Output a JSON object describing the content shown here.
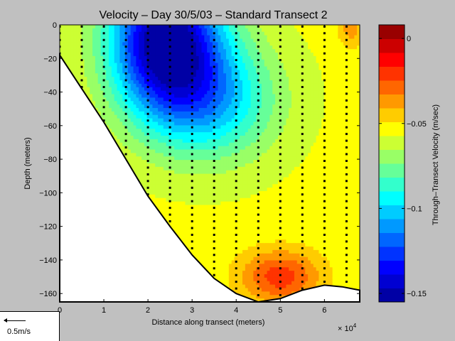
{
  "chart_data": {
    "type": "heatmap",
    "title": "Velocity – Day 30/5/03 – Standard Transect 2",
    "xlabel": "Distance along transect (meters)",
    "x_multiplier": "× 10",
    "x_multiplier_exp": "4",
    "ylabel": "Depth (meters)",
    "colorbar_label": "Through–Transect Velocity (m/sec)",
    "xlim": [
      0,
      6.8
    ],
    "ylim": [
      -165,
      0
    ],
    "x_ticks": [
      0,
      1,
      2,
      3,
      4,
      5,
      6
    ],
    "y_ticks": [
      0,
      -20,
      -40,
      -60,
      -80,
      -100,
      -120,
      -140,
      -160
    ],
    "x_tick_labels": [
      "0",
      "1",
      "2",
      "3",
      "4",
      "5",
      "6"
    ],
    "y_tick_labels": [
      "0",
      "−20",
      "−40",
      "−60",
      "−80",
      "−100",
      "−120",
      "−140",
      "−160"
    ],
    "clim": [
      -0.155,
      0.008
    ],
    "colorbar_ticks": [
      0,
      -0.05,
      -0.1,
      -0.15
    ],
    "colorbar_tick_labels": [
      "0",
      "−0.05",
      "−0.1",
      "−0.15"
    ],
    "bottom_profile": [
      [
        0,
        -18
      ],
      [
        0.5,
        -38
      ],
      [
        1,
        -58
      ],
      [
        1.5,
        -80
      ],
      [
        2,
        -102
      ],
      [
        2.5,
        -120
      ],
      [
        3,
        -137
      ],
      [
        3.5,
        -151
      ],
      [
        4,
        -160
      ],
      [
        4.5,
        -165
      ],
      [
        5,
        -163
      ],
      [
        5.5,
        -158
      ],
      [
        6,
        -155
      ],
      [
        6.4,
        -156
      ],
      [
        6.8,
        -158
      ]
    ],
    "grid": false
  },
  "scale_arrow": {
    "label": "0.5m/s"
  },
  "colors": {
    "background": "#c0c0c0",
    "colormap": [
      "#00008f",
      "#0000ff",
      "#0080ff",
      "#00ffff",
      "#80ff80",
      "#ffff00",
      "#ff8000",
      "#ff0000",
      "#800000"
    ]
  }
}
